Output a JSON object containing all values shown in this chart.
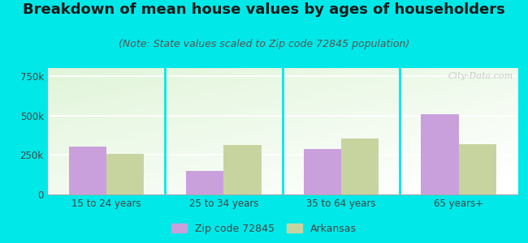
{
  "title": "Breakdown of mean house values by ages of householders",
  "subtitle": "(Note: State values scaled to Zip code 72845 population)",
  "categories": [
    "15 to 24 years",
    "25 to 34 years",
    "35 to 64 years",
    "65 years+"
  ],
  "zip_values": [
    305000,
    150000,
    285000,
    510000
  ],
  "state_values": [
    255000,
    315000,
    355000,
    320000
  ],
  "zip_color": "#c9a0dc",
  "state_color": "#c8d4a0",
  "ylim": [
    0,
    800000
  ],
  "yticks": [
    0,
    250000,
    500000,
    750000
  ],
  "ytick_labels": [
    "0",
    "250k",
    "500k",
    "750k"
  ],
  "background_outer": "#00e8e8",
  "legend_zip": "Zip code 72845",
  "legend_state": "Arkansas",
  "title_fontsize": 13,
  "subtitle_fontsize": 9,
  "bar_width": 0.32,
  "watermark": "City-Data.com"
}
